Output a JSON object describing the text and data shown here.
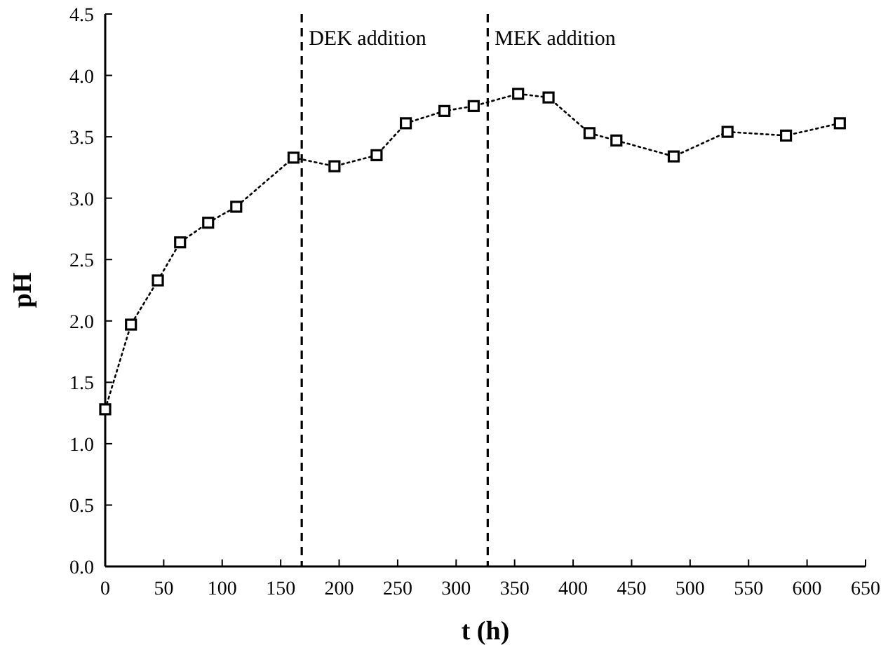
{
  "chart_data": {
    "type": "line",
    "xlabel": "t (h)",
    "ylabel": "pH",
    "x": [
      0,
      22,
      45,
      64,
      88,
      112,
      161,
      196,
      232,
      257,
      290,
      315,
      353,
      379,
      414,
      437,
      486,
      532,
      582,
      628
    ],
    "series": [
      {
        "color": "#000000",
        "values": [
          1.28,
          1.97,
          2.33,
          2.64,
          2.8,
          2.93,
          3.33,
          3.26,
          3.35,
          3.61,
          3.71,
          3.75,
          3.85,
          3.82,
          3.53,
          3.47,
          3.34,
          3.54,
          3.51,
          3.61
        ]
      }
    ],
    "xlim": [
      0,
      650
    ],
    "xticks": [
      0,
      50,
      100,
      150,
      200,
      250,
      300,
      350,
      400,
      450,
      500,
      550,
      600,
      650
    ],
    "ylim": [
      0,
      4.5
    ],
    "yticks": [
      {
        "value": 0,
        "label": "0.0"
      },
      {
        "value": 0.5,
        "label": "0.5"
      },
      {
        "value": 1,
        "label": "1.0"
      },
      {
        "value": 1.5,
        "label": "1.5"
      },
      {
        "value": 2,
        "label": "2.0"
      },
      {
        "value": 2.5,
        "label": "2.5"
      },
      {
        "value": 3,
        "label": "3.0"
      },
      {
        "value": 3.5,
        "label": "3.5"
      },
      {
        "value": 4,
        "label": "4.0"
      },
      {
        "value": 4.5,
        "label": "4.5"
      }
    ],
    "ref_lines": [
      {
        "axis": "x",
        "value": 168,
        "label": "DEK addition",
        "line_style": "dashed"
      },
      {
        "axis": "x",
        "value": 327,
        "label": "MEK addition",
        "line_style": "dashed"
      }
    ],
    "grid": false,
    "marker": "square",
    "line_style": "dotted"
  }
}
